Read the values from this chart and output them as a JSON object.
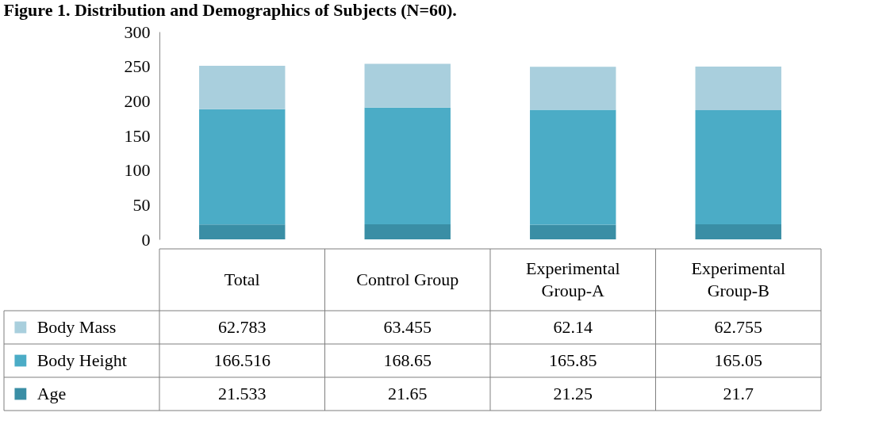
{
  "chart_data": {
    "type": "bar",
    "title": "Figure 1. Distribution and Demographics of Subjects (N=60).",
    "categories": [
      "Total",
      "Control Group",
      "Experimental Group-A",
      "Experimental Group-B"
    ],
    "stacked": true,
    "data_labels": true,
    "legend": "bottom left",
    "series": [
      {
        "name": "Age",
        "color": "#3a8ea5",
        "values": [
          21.533,
          21.65,
          21.25,
          21.7
        ]
      },
      {
        "name": "Body Height",
        "color": "#4bacc6",
        "values": [
          166.516,
          168.65,
          165.85,
          165.05
        ]
      },
      {
        "name": "Body Mass",
        "color": "#a9cfdd",
        "values": [
          62.783,
          63.455,
          62.14,
          62.755
        ]
      }
    ],
    "ylim": [
      0,
      300
    ],
    "yticks": [
      0,
      50,
      100,
      150,
      200,
      250,
      300
    ]
  }
}
